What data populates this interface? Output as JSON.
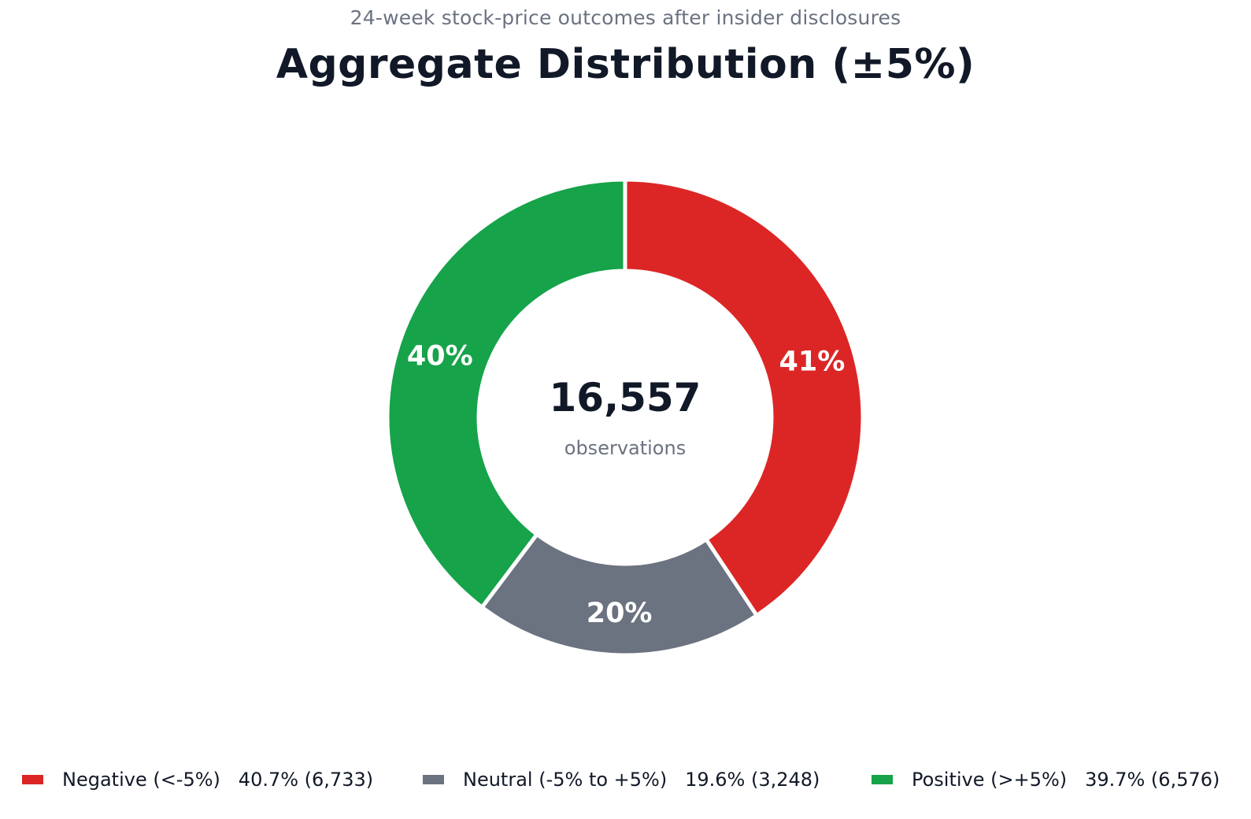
{
  "subtitle": "24-week stock-price outcomes after insider disclosures",
  "title": "Aggregate Distribution (±5%)",
  "center": {
    "total": "16,557",
    "caption": "observations"
  },
  "legend": [
    {
      "label": "Negative (<-5%)",
      "stats": "40.7% (6,733)"
    },
    {
      "label": "Neutral (-5% to +5%)",
      "stats": "19.6% (3,248)"
    },
    {
      "label": "Positive (>+5%)",
      "stats": "39.7% (6,576)"
    }
  ],
  "chart_data": {
    "type": "pie",
    "variant": "donut",
    "title": "Aggregate Distribution (±5%)",
    "subtitle": "24-week stock-price outcomes after insider disclosures",
    "total": 16557,
    "start": "12 o'clock",
    "direction": "clockwise",
    "legend_position": "bottom",
    "slices": [
      {
        "name": "Negative (<-5%)",
        "count": 6733,
        "percent": 40.7,
        "label": "41%",
        "color": "#dc2626"
      },
      {
        "name": "Neutral (-5% to +5%)",
        "count": 3248,
        "percent": 19.6,
        "label": "20%",
        "color": "#6b7280"
      },
      {
        "name": "Positive (>+5%)",
        "count": 6576,
        "percent": 39.7,
        "label": "40%",
        "color": "#16a34a"
      }
    ]
  }
}
